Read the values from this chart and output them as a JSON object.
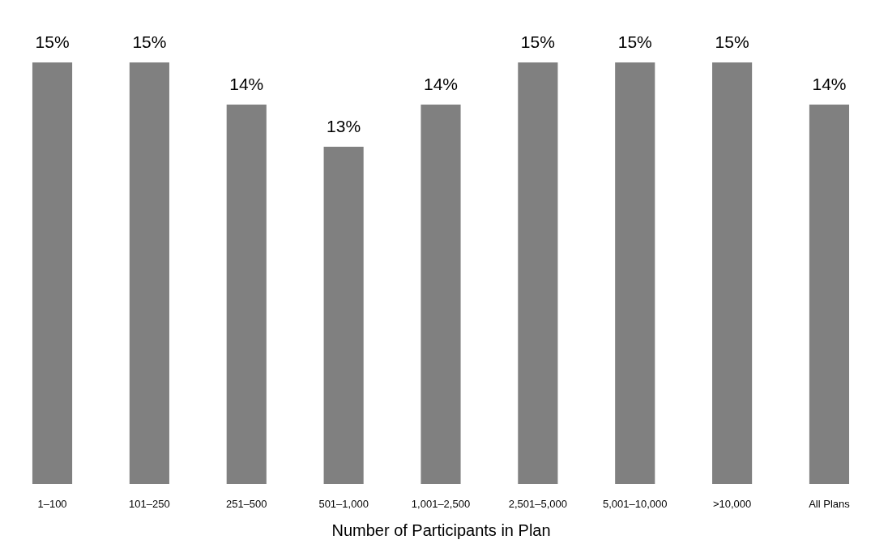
{
  "chart_data": {
    "type": "bar",
    "xlabel": "Number of Participants in Plan",
    "categories": [
      "1–100",
      "101–250",
      "251–500",
      "501–1,000",
      "1,001–2,500",
      "2,501–5,000",
      "5,001–10,000",
      ">10,000",
      "All Plans"
    ],
    "series": [
      {
        "color": "#808080",
        "values": [
          15,
          15,
          14,
          13,
          14,
          15,
          15,
          15,
          14
        ],
        "value_labels": [
          "15%",
          "15%",
          "14%",
          "13%",
          "14%",
          "15%",
          "15%",
          "15%",
          "14%"
        ]
      }
    ],
    "ylim": [
      5,
      15
    ],
    "tick_labels": "x"
  }
}
